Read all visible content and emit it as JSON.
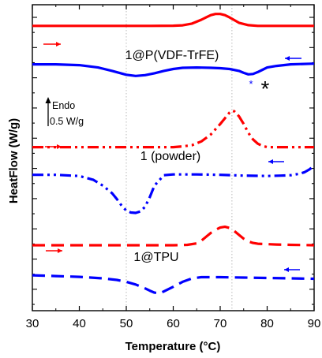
{
  "chart_data": {
    "type": "line",
    "xlabel": "Temperature (°C)",
    "ylabel": "HeatFlow (W/g)",
    "xlim": [
      30,
      90
    ],
    "xticks": [
      "30",
      "40",
      "50",
      "60",
      "70",
      "80",
      "90"
    ],
    "y_ticks_labeled": false,
    "y_minor_tick_count": 20,
    "grid": false,
    "reference_lines_x": [
      50,
      72.5
    ],
    "scale_bar": {
      "label_top": "Endo",
      "label_bottom": "0.5 W/g"
    },
    "group_labels": [
      "1@P(VDF-TrFE)",
      "1 (powder)",
      "1@TPU"
    ],
    "annotations": [
      "*",
      "*"
    ],
    "series": [
      {
        "group": "1@P(VDF-TrFE)",
        "direction": "heating",
        "color": "#ff0000",
        "style": "solid",
        "x": [
          30,
          35,
          40,
          45,
          50,
          55,
          60,
          62,
          64,
          66,
          67,
          68,
          69,
          70,
          71,
          72,
          73,
          74,
          76,
          78,
          80,
          85,
          90
        ],
        "y": [
          0.0,
          0.0,
          0.0,
          0.0,
          0.0,
          0.0,
          0.005,
          0.015,
          0.06,
          0.16,
          0.22,
          0.28,
          0.31,
          0.31,
          0.28,
          0.22,
          0.15,
          0.08,
          0.02,
          0.0,
          0.0,
          0.0,
          0.0
        ]
      },
      {
        "group": "1@P(VDF-TrFE)",
        "direction": "cooling",
        "color": "#0000ff",
        "style": "solid",
        "x": [
          30,
          35,
          40,
          44,
          47,
          50,
          52,
          54,
          56,
          58,
          60,
          62,
          65,
          68,
          70,
          72,
          74,
          75,
          76,
          77,
          78,
          79,
          80,
          82,
          85,
          90
        ],
        "y": [
          -1.0,
          -1.0,
          -1.02,
          -1.08,
          -1.17,
          -1.27,
          -1.3,
          -1.28,
          -1.23,
          -1.17,
          -1.12,
          -1.09,
          -1.08,
          -1.09,
          -1.1,
          -1.12,
          -1.17,
          -1.22,
          -1.26,
          -1.25,
          -1.2,
          -1.14,
          -1.08,
          -1.04,
          -1.0,
          -0.98
        ]
      },
      {
        "group": "1 (powder)",
        "direction": "heating",
        "color": "#ff0000",
        "style": "dash-dot-dot",
        "x": [
          30,
          35,
          40,
          45,
          50,
          55,
          60,
          62,
          64,
          66,
          68,
          70,
          71,
          72,
          72.5,
          73,
          74,
          75,
          76,
          77,
          78,
          79,
          80,
          82,
          85,
          90
        ],
        "y": [
          -3.15,
          -3.15,
          -3.15,
          -3.15,
          -3.15,
          -3.15,
          -3.15,
          -3.13,
          -3.1,
          -3.0,
          -2.82,
          -2.55,
          -2.4,
          -2.25,
          -2.2,
          -2.22,
          -2.35,
          -2.55,
          -2.78,
          -2.95,
          -3.06,
          -3.12,
          -3.15,
          -3.15,
          -3.15,
          -3.15
        ]
      },
      {
        "group": "1 (powder)",
        "direction": "cooling",
        "color": "#0000ff",
        "style": "dash-dot-dot",
        "x": [
          30,
          35,
          40,
          43,
          45,
          47,
          48,
          49,
          50,
          51,
          52,
          53,
          54,
          55,
          56,
          58,
          60,
          65,
          70,
          75,
          80,
          83,
          85,
          87,
          88,
          89,
          90
        ],
        "y": [
          -3.87,
          -3.87,
          -3.9,
          -4.0,
          -4.15,
          -4.35,
          -4.5,
          -4.67,
          -4.8,
          -4.85,
          -4.86,
          -4.82,
          -4.7,
          -4.45,
          -4.15,
          -3.88,
          -3.86,
          -3.86,
          -3.87,
          -3.89,
          -3.9,
          -3.89,
          -3.88,
          -3.84,
          -3.8,
          -3.73,
          -3.63
        ]
      },
      {
        "group": "1@TPU",
        "direction": "heating",
        "color": "#ff0000",
        "style": "dashed",
        "x": [
          30,
          35,
          40,
          45,
          50,
          55,
          60,
          63,
          65,
          66,
          67,
          68,
          69,
          70,
          71,
          72,
          73,
          74,
          75,
          76,
          77,
          78,
          80,
          82,
          85,
          90
        ],
        "y": [
          -5.7,
          -5.7,
          -5.7,
          -5.7,
          -5.7,
          -5.7,
          -5.7,
          -5.69,
          -5.65,
          -5.58,
          -5.48,
          -5.38,
          -5.3,
          -5.24,
          -5.22,
          -5.25,
          -5.33,
          -5.43,
          -5.53,
          -5.6,
          -5.64,
          -5.66,
          -5.67,
          -5.68,
          -5.69,
          -5.7
        ]
      },
      {
        "group": "1@TPU",
        "direction": "cooling",
        "color": "#0000ff",
        "style": "dashed",
        "x": [
          30,
          35,
          40,
          45,
          48,
          50,
          52,
          54,
          55,
          56,
          57,
          58,
          60,
          62,
          64,
          66,
          70,
          75,
          80,
          85,
          90
        ],
        "y": [
          -6.48,
          -6.5,
          -6.52,
          -6.56,
          -6.6,
          -6.65,
          -6.72,
          -6.82,
          -6.88,
          -6.93,
          -6.95,
          -6.9,
          -6.78,
          -6.65,
          -6.56,
          -6.53,
          -6.53,
          -6.54,
          -6.55,
          -6.56,
          -6.57
        ]
      }
    ]
  }
}
